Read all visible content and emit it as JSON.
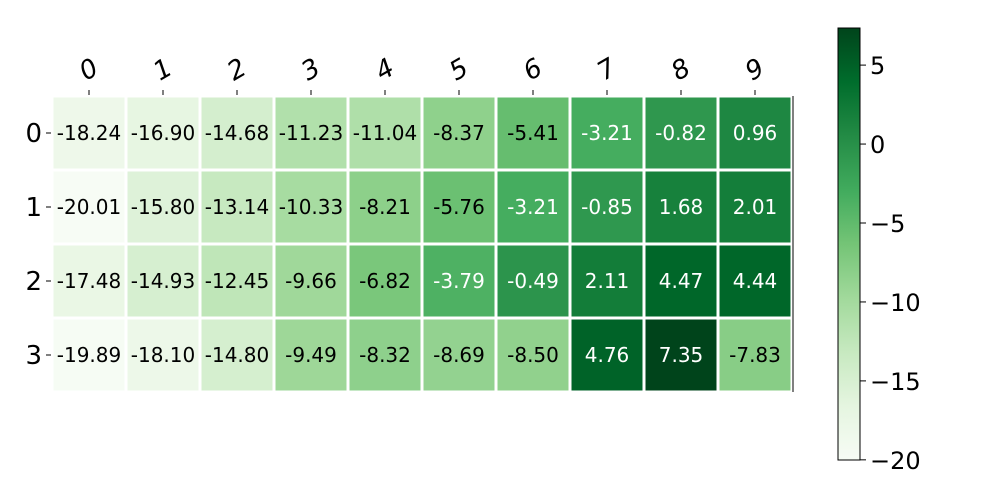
{
  "chart_data": {
    "type": "heatmap",
    "colormap": "Greens",
    "x_tick_labels": [
      "0",
      "1",
      "2",
      "3",
      "4",
      "5",
      "6",
      "7",
      "8",
      "9"
    ],
    "y_tick_labels": [
      "0",
      "1",
      "2",
      "3"
    ],
    "values": [
      [
        -18.24,
        -16.9,
        -14.68,
        -11.23,
        -11.04,
        -8.37,
        -5.41,
        -3.21,
        -0.82,
        0.96
      ],
      [
        -20.01,
        -15.8,
        -13.14,
        -10.33,
        -8.21,
        -5.76,
        -3.21,
        -0.85,
        1.68,
        2.01
      ],
      [
        -17.48,
        -14.93,
        -12.45,
        -9.66,
        -6.82,
        -3.79,
        -0.49,
        2.11,
        4.47,
        4.44
      ],
      [
        -19.89,
        -18.1,
        -14.8,
        -9.49,
        -8.32,
        -8.69,
        -8.5,
        4.76,
        7.35,
        -7.83
      ]
    ],
    "value_labels": [
      [
        "-18.24",
        "-16.90",
        "-14.68",
        "-11.23",
        "-11.04",
        "-8.37",
        "-5.41",
        "-3.21",
        "-0.82",
        "0.96"
      ],
      [
        "-20.01",
        "-15.80",
        "-13.14",
        "-10.33",
        "-8.21",
        "-5.76",
        "-3.21",
        "-0.85",
        "1.68",
        "2.01"
      ],
      [
        "-17.48",
        "-14.93",
        "-12.45",
        "-9.66",
        "-6.82",
        "-3.79",
        "-0.49",
        "2.11",
        "4.47",
        "4.44"
      ],
      [
        "-19.89",
        "-18.10",
        "-14.80",
        "-9.49",
        "-8.32",
        "-8.69",
        "-8.50",
        "4.76",
        "7.35",
        "-7.83"
      ]
    ],
    "x_axis_position": "top",
    "colorbar": {
      "range": [
        -20.01,
        7.35
      ],
      "ticks": [
        5,
        0,
        -5,
        -10,
        -15,
        -20
      ],
      "tick_labels": [
        "5",
        "0",
        "−5",
        "−10",
        "−15",
        "−20"
      ],
      "placement": "right"
    },
    "grid": false,
    "title": "",
    "xlabel": "",
    "ylabel": ""
  }
}
